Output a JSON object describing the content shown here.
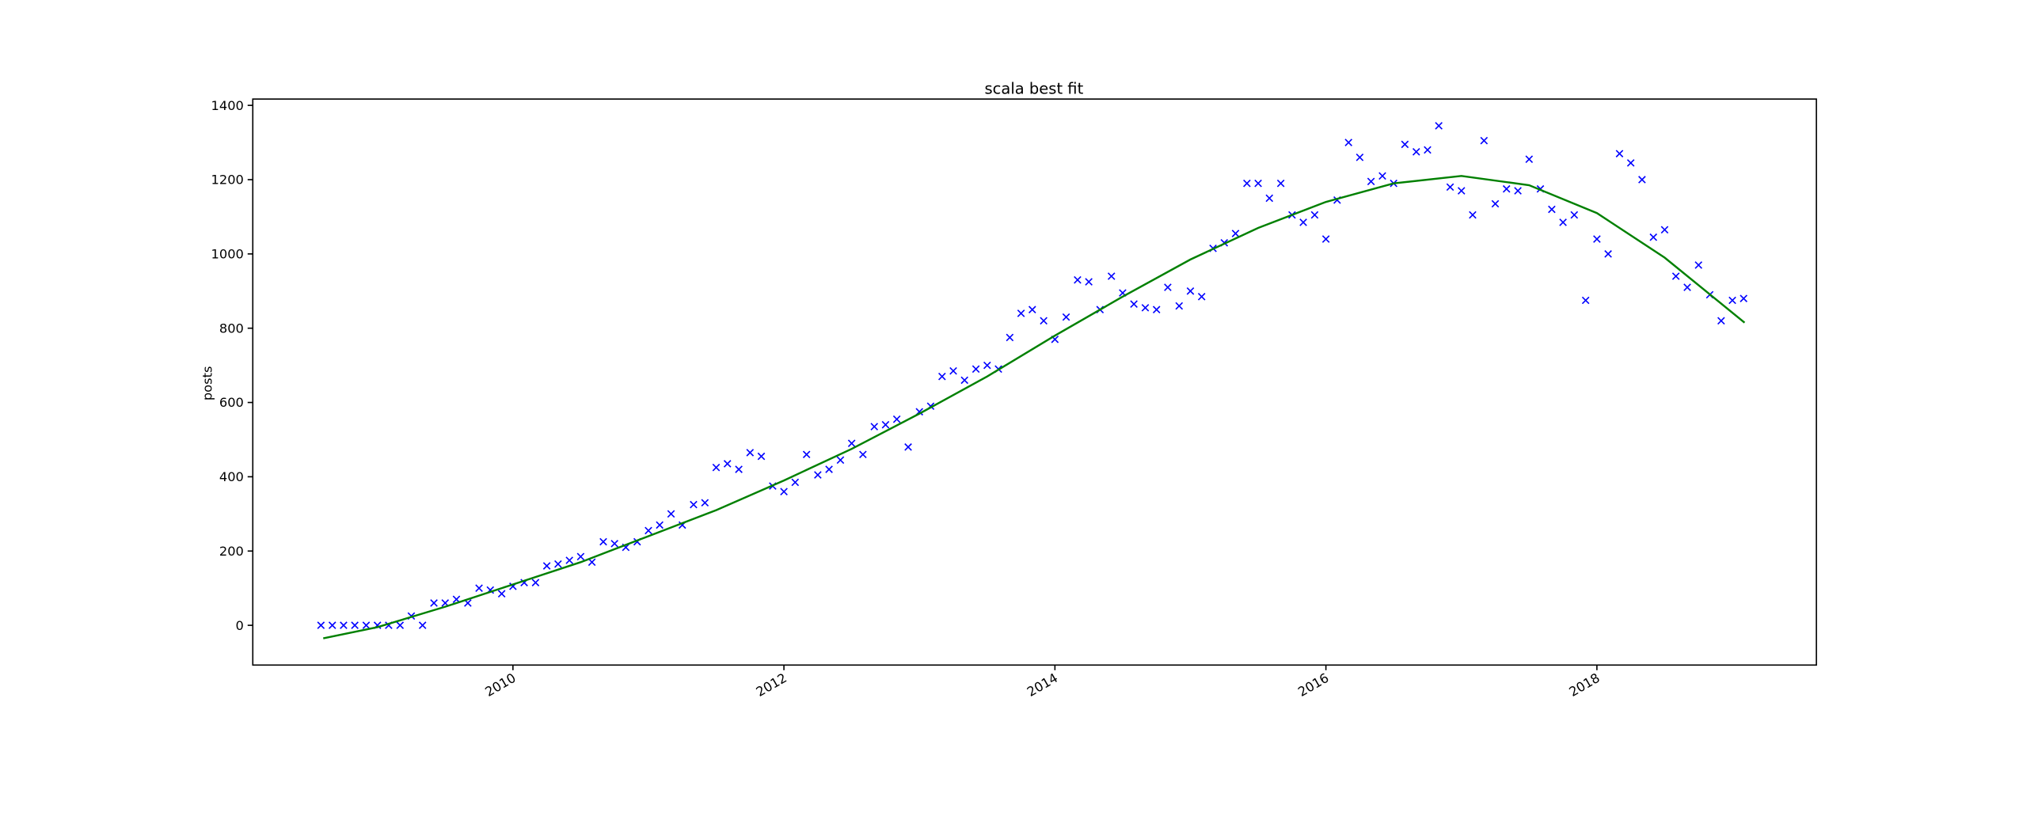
{
  "chart_data": {
    "type": "scatter",
    "title": "scala best fit",
    "y_label": "posts",
    "xlim": [
      2008.08,
      2019.62
    ],
    "ylim": [
      -107,
      1417
    ],
    "xticks": [
      2010,
      2012,
      2014,
      2016,
      2018
    ],
    "yticks": [
      0,
      200,
      400,
      600,
      800,
      1000,
      1200,
      1400
    ],
    "series": [
      {
        "type": "scatter",
        "marker": "x",
        "color": "#0000ff",
        "x": [
          2008.583,
          2008.667,
          2008.75,
          2008.833,
          2008.917,
          2009,
          2009.083,
          2009.167,
          2009.25,
          2009.333,
          2009.417,
          2009.5,
          2009.583,
          2009.667,
          2009.75,
          2009.833,
          2009.917,
          2010,
          2010.083,
          2010.167,
          2010.25,
          2010.333,
          2010.417,
          2010.5,
          2010.583,
          2010.667,
          2010.75,
          2010.833,
          2010.917,
          2011,
          2011.083,
          2011.167,
          2011.25,
          2011.333,
          2011.417,
          2011.5,
          2011.583,
          2011.667,
          2011.75,
          2011.833,
          2011.917,
          2012,
          2012.083,
          2012.167,
          2012.25,
          2012.333,
          2012.417,
          2012.5,
          2012.583,
          2012.667,
          2012.75,
          2012.833,
          2012.917,
          2013,
          2013.083,
          2013.167,
          2013.25,
          2013.333,
          2013.417,
          2013.5,
          2013.583,
          2013.667,
          2013.75,
          2013.833,
          2013.917,
          2014,
          2014.083,
          2014.167,
          2014.25,
          2014.333,
          2014.417,
          2014.5,
          2014.583,
          2014.667,
          2014.75,
          2014.833,
          2014.917,
          2015,
          2015.083,
          2015.167,
          2015.25,
          2015.333,
          2015.417,
          2015.5,
          2015.583,
          2015.667,
          2015.75,
          2015.833,
          2015.917,
          2016,
          2016.083,
          2016.167,
          2016.25,
          2016.333,
          2016.417,
          2016.5,
          2016.583,
          2016.667,
          2016.75,
          2016.833,
          2016.917,
          2017,
          2017.083,
          2017.167,
          2017.25,
          2017.333,
          2017.417,
          2017.5,
          2017.583,
          2017.667,
          2017.75,
          2017.833,
          2017.917,
          2018,
          2018.083,
          2018.167,
          2018.25,
          2018.333,
          2018.417,
          2018.5,
          2018.583,
          2018.667,
          2018.75,
          2018.833,
          2018.917,
          2019,
          2019.083
        ],
        "values": [
          0,
          0,
          0,
          0,
          0,
          0,
          0,
          0,
          25,
          0,
          60,
          60,
          70,
          60,
          100,
          95,
          85,
          105,
          115,
          115,
          160,
          165,
          175,
          185,
          170,
          225,
          220,
          210,
          225,
          255,
          270,
          300,
          270,
          325,
          330,
          425,
          435,
          420,
          465,
          455,
          375,
          360,
          385,
          460,
          405,
          420,
          445,
          490,
          460,
          535,
          540,
          555,
          480,
          575,
          590,
          670,
          685,
          660,
          690,
          700,
          690,
          775,
          840,
          850,
          820,
          770,
          830,
          930,
          925,
          850,
          940,
          895,
          865,
          855,
          850,
          910,
          860,
          900,
          885,
          1015,
          1030,
          1055,
          1190,
          1190,
          1150,
          1190,
          1105,
          1085,
          1105,
          1040,
          1145,
          1300,
          1260,
          1195,
          1210,
          1190,
          1295,
          1275,
          1280,
          1345,
          1180,
          1170,
          1105,
          1305,
          1135,
          1175,
          1170,
          1255,
          1175,
          1120,
          1085,
          1105,
          875,
          1040,
          1000,
          1270,
          1245,
          1200,
          1045,
          1065,
          940,
          910,
          970,
          890,
          820,
          875,
          880
        ]
      },
      {
        "type": "line",
        "color": "#008000",
        "x": [
          2008.6,
          2009,
          2009.5,
          2010,
          2010.5,
          2011,
          2011.5,
          2012,
          2012.5,
          2013,
          2013.5,
          2014,
          2014.5,
          2015,
          2015.5,
          2016,
          2016.5,
          2017,
          2017.5,
          2018,
          2018.5,
          2019.09
        ],
        "values": [
          -35,
          -5,
          50,
          110,
          170,
          240,
          310,
          390,
          475,
          570,
          670,
          780,
          885,
          985,
          1070,
          1140,
          1190,
          1210,
          1185,
          1110,
          990,
          815
        ]
      }
    ]
  }
}
